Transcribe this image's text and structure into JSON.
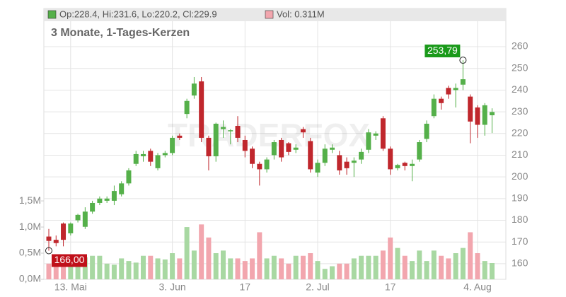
{
  "chart_data": {
    "type": "candlestick",
    "legend_ohlc": "Op:228.4, Hi:231.6, Lo:220.2, Cl:229.9",
    "legend_volume": "Vol: 0.311M",
    "subtitle": "3 Monate, 1-Tages-Kerzen",
    "watermark": "TRADERFOX",
    "high_label": "253,79",
    "low_label": "166,00",
    "categories": [
      null,
      null,
      null,
      "13. Mai",
      null,
      null,
      null,
      null,
      null,
      null,
      null,
      null,
      null,
      null,
      null,
      null,
      null,
      "3. Jun",
      null,
      null,
      null,
      null,
      null,
      null,
      null,
      null,
      null,
      "17",
      null,
      null,
      null,
      null,
      null,
      null,
      null,
      null,
      null,
      "2. Jul",
      null,
      null,
      null,
      null,
      null,
      null,
      null,
      null,
      null,
      "17",
      null,
      null,
      null,
      null,
      null,
      null,
      null,
      null,
      null,
      null,
      null,
      "4. Aug",
      null,
      null
    ],
    "open": [
      172.5,
      171,
      178.5,
      174,
      180,
      177,
      184,
      188,
      189,
      189,
      192,
      197,
      206,
      209.5,
      212,
      204,
      210,
      211,
      219,
      229,
      237.5,
      244,
      218,
      209.5,
      222,
      221,
      223.5,
      217,
      213,
      206,
      203.5,
      210,
      217,
      215.5,
      212.5,
      222,
      216.5,
      202,
      206.5,
      212.5,
      210,
      207,
      206.5,
      208,
      212.5,
      219,
      227,
      213,
      204,
      206.5,
      205,
      208,
      217.5,
      228,
      236,
      241,
      240,
      242.5,
      237,
      232,
      224,
      228.4
    ],
    "high": [
      176,
      173,
      179,
      179,
      183,
      186,
      189,
      191,
      191,
      196,
      198,
      204,
      212,
      212,
      213,
      211,
      212,
      219,
      220,
      236,
      246,
      246,
      219,
      225,
      226,
      222,
      228,
      219,
      214,
      207,
      209,
      217,
      218,
      216,
      215,
      223,
      218,
      208,
      215,
      215,
      212,
      209,
      209,
      213,
      222,
      221,
      228,
      214,
      206,
      207,
      208,
      217,
      226,
      238,
      237,
      242,
      243,
      253.79,
      238,
      233,
      234,
      231.6
    ],
    "low": [
      166,
      168,
      168,
      173,
      179,
      176,
      183,
      187,
      188,
      187,
      191,
      196,
      205,
      207,
      205,
      203,
      209,
      210,
      217,
      227,
      236,
      216,
      203,
      207,
      218,
      215,
      216,
      209,
      204,
      196,
      202,
      208,
      207,
      210,
      211,
      218,
      202,
      200,
      205,
      211,
      201,
      201,
      200,
      206,
      211,
      217,
      212,
      201,
      203,
      203,
      198,
      207,
      216,
      227,
      231,
      236,
      232,
      240,
      215.5,
      218,
      219,
      220.2
    ],
    "close": [
      170.5,
      169.5,
      171,
      178.5,
      182.5,
      184,
      188,
      190,
      190,
      193.5,
      197,
      203,
      210.5,
      210.5,
      207,
      210,
      211,
      218,
      218,
      235,
      243,
      218,
      209.5,
      224.5,
      223,
      221.5,
      218,
      212,
      206,
      203.5,
      208,
      216,
      209,
      211.5,
      213.5,
      220.5,
      203.5,
      206.5,
      213,
      213.5,
      203,
      204,
      207.5,
      211.5,
      220.5,
      220,
      213,
      203.5,
      205.5,
      205,
      206,
      216,
      224.5,
      236,
      234,
      238,
      241,
      245,
      225.5,
      224,
      233,
      229.9
    ],
    "volume": [
      0.3,
      0.4,
      0.38,
      0.45,
      0.4,
      0.42,
      0.45,
      0.45,
      0.3,
      0.28,
      0.4,
      0.35,
      0.32,
      0.45,
      0.45,
      0.4,
      0.38,
      0.5,
      0.4,
      1.0,
      0.55,
      1.05,
      0.8,
      0.5,
      0.55,
      0.4,
      0.4,
      0.35,
      0.4,
      0.9,
      0.4,
      0.45,
      0.4,
      0.3,
      0.45,
      0.45,
      0.5,
      0.35,
      0.2,
      0.25,
      0.3,
      0.3,
      0.4,
      0.45,
      0.45,
      0.45,
      0.55,
      0.8,
      0.6,
      0.45,
      0.35,
      0.55,
      0.35,
      0.55,
      0.45,
      0.4,
      0.5,
      0.6,
      0.9,
      0.5,
      0.35,
      0.311
    ],
    "up_color": "#55b04a",
    "down_color": "#c0272d",
    "volume_up_color": "#a8d8a2",
    "volume_down_color": "#f2a6ae",
    "ylim": [
      152.8,
      277.6
    ],
    "yticks": [
      160,
      170,
      180,
      190,
      200,
      210,
      220,
      230,
      240,
      250,
      260
    ],
    "y2lim": [
      0,
      5.18
    ],
    "y2ticks": [
      {
        "value": 0,
        "label": "0,0M"
      },
      {
        "value": 0.5,
        "label": "0,5M"
      },
      {
        "value": 1.0,
        "label": "1,0M"
      },
      {
        "value": 1.5,
        "label": "1,5M"
      }
    ],
    "grid": true
  }
}
